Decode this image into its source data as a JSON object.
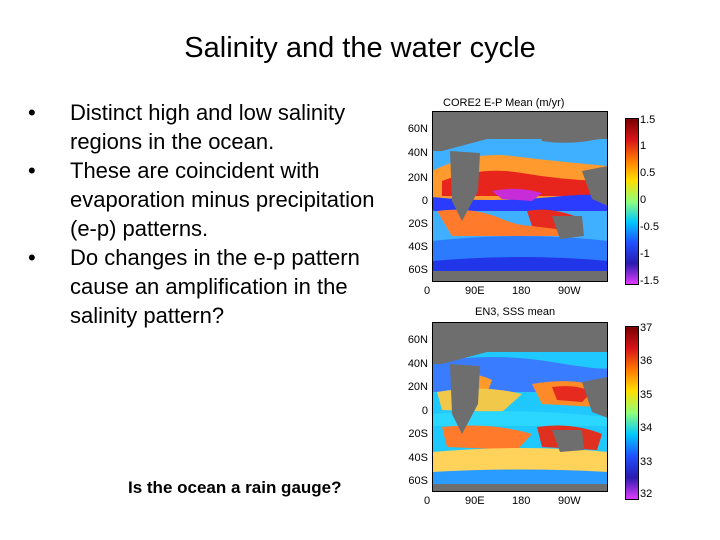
{
  "slide": {
    "title": "Salinity and the water cycle",
    "bullets": [
      "Distinct high and low salinity regions in the ocean.",
      "These are coincident with evaporation minus precipitation (e-p) patterns.",
      "Do changes in the e-p pattern cause an amplification in the salinity pattern?"
    ],
    "question": "Is the ocean a rain gauge?"
  },
  "maps": [
    {
      "title": "CORE2  E-P  Mean  (m/yr)",
      "lat_labels": [
        "60N",
        "40N",
        "20N",
        "0",
        "20S",
        "40S",
        "60S"
      ],
      "lon_labels": [
        "0",
        "90E",
        "180",
        "90W"
      ],
      "colorbar_ticks": [
        "1.5",
        "1",
        "0.5",
        "0",
        "-0.5",
        "-1",
        "-1.5"
      ]
    },
    {
      "title": "EN3, SSS mean",
      "lat_labels": [
        "60N",
        "40N",
        "20N",
        "0",
        "20S",
        "40S",
        "60S"
      ],
      "lon_labels": [
        "0",
        "90E",
        "180",
        "90W"
      ],
      "colorbar_ticks": [
        "37",
        "36",
        "35",
        "34",
        "33",
        "32"
      ]
    }
  ],
  "colors": {
    "land": "#6e6e6e",
    "high": "#d81b1b",
    "low": "#2232ff"
  }
}
